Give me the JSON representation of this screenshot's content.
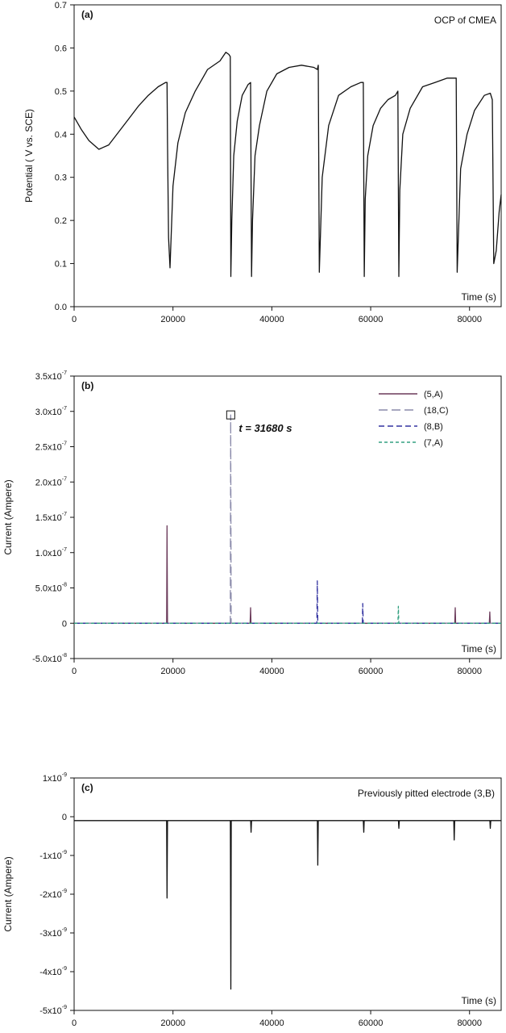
{
  "chart_data": [
    {
      "panel": "(a)",
      "type": "line",
      "annotation": "OCP  of CMEA",
      "xlabel": "Time (s)",
      "ylabel": "Potential ( V vs. SCE)",
      "xlim": [
        0,
        86400
      ],
      "ylim": [
        0,
        0.7
      ],
      "xticks": [
        0,
        20000,
        40000,
        60000,
        80000
      ],
      "xtick_labels": [
        "0",
        "20000",
        "40000",
        "60000",
        "80000"
      ],
      "yticks": [
        0,
        0.1,
        0.2,
        0.3,
        0.4,
        0.5,
        0.6,
        0.7
      ],
      "ytick_labels": [
        "0.0",
        "0.1",
        "0.2",
        "0.3",
        "0.4",
        "0.5",
        "0.6",
        "0.7"
      ],
      "grid": false,
      "series": [
        {
          "color": "#111111",
          "x": [
            0,
            1500,
            3000,
            5000,
            7000,
            9000,
            11000,
            13000,
            15000,
            17000,
            18500,
            18800,
            18900,
            19100,
            19400,
            20000,
            21000,
            22500,
            24500,
            27000,
            29500,
            30700,
            31300,
            31600,
            31700,
            31900,
            32300,
            33000,
            34000,
            35200,
            35700,
            35900,
            36100,
            36600,
            37500,
            39000,
            41000,
            43500,
            46000,
            48500,
            49200,
            49400,
            49600,
            50200,
            51500,
            53500,
            56000,
            58000,
            58500,
            58700,
            58900,
            59400,
            60500,
            62000,
            63500,
            65000,
            65500,
            65700,
            65900,
            66500,
            68000,
            70500,
            73000,
            75500,
            77000,
            77300,
            77500,
            78200,
            79500,
            81000,
            83000,
            84200,
            84600,
            84900,
            85400,
            86000,
            86400
          ],
          "y": [
            0.44,
            0.41,
            0.385,
            0.365,
            0.375,
            0.405,
            0.435,
            0.465,
            0.49,
            0.51,
            0.52,
            0.52,
            0.38,
            0.16,
            0.09,
            0.28,
            0.38,
            0.45,
            0.5,
            0.55,
            0.57,
            0.59,
            0.585,
            0.58,
            0.07,
            0.2,
            0.35,
            0.43,
            0.49,
            0.515,
            0.52,
            0.07,
            0.2,
            0.35,
            0.42,
            0.5,
            0.54,
            0.555,
            0.56,
            0.555,
            0.55,
            0.56,
            0.08,
            0.3,
            0.42,
            0.49,
            0.51,
            0.52,
            0.52,
            0.07,
            0.25,
            0.35,
            0.42,
            0.46,
            0.48,
            0.49,
            0.5,
            0.07,
            0.27,
            0.4,
            0.46,
            0.51,
            0.52,
            0.53,
            0.53,
            0.53,
            0.08,
            0.32,
            0.4,
            0.455,
            0.49,
            0.495,
            0.48,
            0.1,
            0.13,
            0.22,
            0.26
          ]
        }
      ]
    },
    {
      "panel": "(b)",
      "type": "line",
      "annotation": "t = 31680 s",
      "xlabel": "Time (s)",
      "ylabel": "Current (Ampere)",
      "xlim": [
        0,
        86400
      ],
      "ylim": [
        -5e-08,
        3.5e-07
      ],
      "xticks": [
        0,
        20000,
        40000,
        60000,
        80000
      ],
      "xtick_labels": [
        "0",
        "20000",
        "40000",
        "60000",
        "80000"
      ],
      "yticks": [
        -5e-08,
        0,
        5e-08,
        1e-07,
        1.5e-07,
        2e-07,
        2.5e-07,
        3e-07,
        3.5e-07
      ],
      "ytick_labels": [
        {
          "mantissa": "-5.0x10",
          "exp": "-8"
        },
        {
          "mantissa": "0",
          "exp": ""
        },
        {
          "mantissa": "5.0x10",
          "exp": "-8"
        },
        {
          "mantissa": "1.0x10",
          "exp": "-7"
        },
        {
          "mantissa": "1.5x10",
          "exp": "-7"
        },
        {
          "mantissa": "2.0x10",
          "exp": "-7"
        },
        {
          "mantissa": "2.5x10",
          "exp": "-7"
        },
        {
          "mantissa": "3.0x10",
          "exp": "-7"
        },
        {
          "mantissa": "3.5x10",
          "exp": "-7"
        }
      ],
      "grid": false,
      "legend_position": "top-right",
      "marker": {
        "x": 31680,
        "y": 2.95e-07
      },
      "series": [
        {
          "name": "(5,A)",
          "color": "#6b3a5a",
          "dash": "solid",
          "spikes": [
            [
              18800,
              1.38e-07
            ],
            [
              35700,
              2.2e-08
            ],
            [
              77100,
              2.2e-08
            ],
            [
              84100,
              1.6e-08
            ]
          ]
        },
        {
          "name": "(18,C)",
          "color": "#8a8aaa",
          "dash": "long",
          "spikes": [
            [
              31680,
              2.95e-07
            ]
          ]
        },
        {
          "name": "(8,B)",
          "color": "#3333a0",
          "dash": "medium",
          "spikes": [
            [
              49200,
              6e-08
            ],
            [
              58400,
              2.8e-08
            ]
          ]
        },
        {
          "name": "(7,A)",
          "color": "#33a080",
          "dash": "short",
          "spikes": [
            [
              65600,
              2.4e-08
            ]
          ]
        }
      ]
    },
    {
      "panel": "(c)",
      "type": "line",
      "annotation": "Previously pitted electrode (3,B)",
      "xlabel": "Time (s)",
      "ylabel": "Current (Ampere)",
      "xlim": [
        0,
        86400
      ],
      "ylim": [
        -5e-09,
        1e-09
      ],
      "xticks": [
        0,
        20000,
        40000,
        60000,
        80000
      ],
      "xtick_labels": [
        "0",
        "20000",
        "40000",
        "60000",
        "80000"
      ],
      "yticks": [
        -5e-09,
        -4e-09,
        -3e-09,
        -2e-09,
        -1e-09,
        0,
        1e-09
      ],
      "ytick_labels": [
        {
          "mantissa": "-5x10",
          "exp": "-9"
        },
        {
          "mantissa": "-4x10",
          "exp": "-9"
        },
        {
          "mantissa": "-3x10",
          "exp": "-9"
        },
        {
          "mantissa": "-2x10",
          "exp": "-9"
        },
        {
          "mantissa": "-1x10",
          "exp": "-9"
        },
        {
          "mantissa": "0",
          "exp": ""
        },
        {
          "mantissa": "1x10",
          "exp": "-9"
        }
      ],
      "grid": false,
      "series": [
        {
          "color": "#111111",
          "baseline": -1e-10,
          "spikes": [
            [
              18800,
              -2.1e-09
            ],
            [
              31700,
              -4.45e-09
            ],
            [
              35800,
              -4e-10
            ],
            [
              49300,
              -1.25e-09
            ],
            [
              58600,
              -4e-10
            ],
            [
              65700,
              -3e-10
            ],
            [
              76900,
              -6e-10
            ],
            [
              84200,
              -3e-10
            ]
          ]
        }
      ]
    }
  ]
}
